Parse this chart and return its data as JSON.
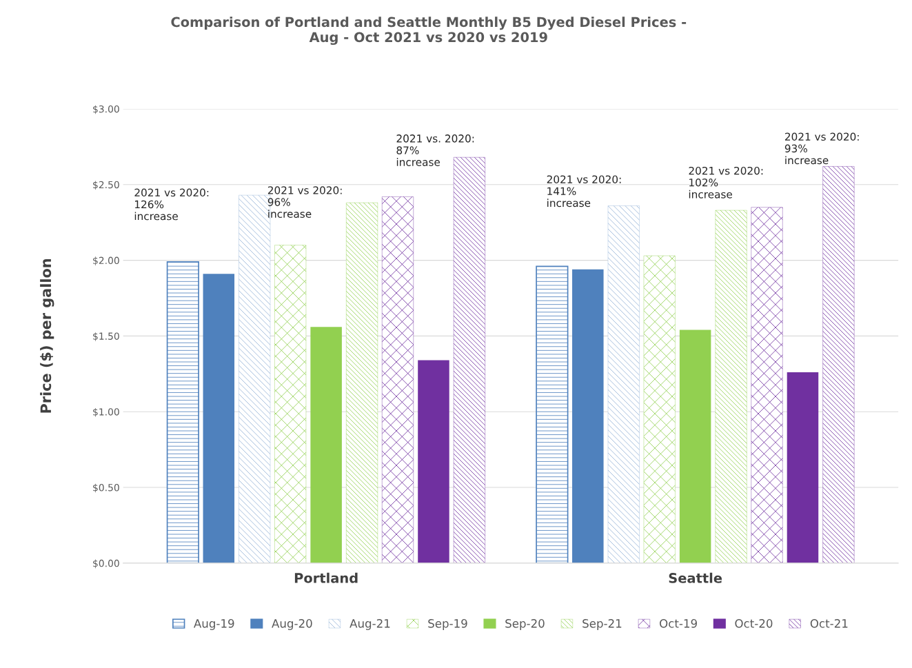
{
  "chart_data": {
    "type": "bar",
    "title": "Comparison of Portland and Seattle Monthly B5 Dyed Diesel Prices -\nAug - Oct 2021 vs 2020 vs 2019",
    "ylabel": "Price ($) per gallon",
    "categories": [
      "Portland",
      "Seattle"
    ],
    "series": [
      {
        "name": "Aug-19",
        "color": "#4f81bd",
        "values": [
          1.99,
          1.96
        ]
      },
      {
        "name": "Aug-20",
        "color": "#4f81bd",
        "values": [
          1.91,
          1.94
        ]
      },
      {
        "name": "Aug-21",
        "color": "#95b3d7",
        "values": [
          2.43,
          2.36
        ]
      },
      {
        "name": "Sep-19",
        "color": "#92d050",
        "values": [
          2.1,
          2.03
        ]
      },
      {
        "name": "Sep-20",
        "color": "#92d050",
        "values": [
          1.56,
          1.54
        ]
      },
      {
        "name": "Sep-21",
        "color": "#92d050",
        "values": [
          2.38,
          2.33
        ]
      },
      {
        "name": "Oct-19",
        "color": "#7030a0",
        "values": [
          2.42,
          2.35
        ]
      },
      {
        "name": "Oct-20",
        "color": "#7030a0",
        "values": [
          1.34,
          1.26
        ]
      },
      {
        "name": "Oct-21",
        "color": "#7030a0",
        "values": [
          2.68,
          2.62
        ]
      }
    ],
    "ylim": [
      0,
      3
    ],
    "yticks": [
      {
        "value": 0,
        "label": "$0.00"
      },
      {
        "value": 0.5,
        "label": "$0.50"
      },
      {
        "value": 1,
        "label": "$1.00"
      },
      {
        "value": 1.5,
        "label": "$1.50"
      },
      {
        "value": 2,
        "label": "$2.00"
      },
      {
        "value": 2.5,
        "label": "$2.50"
      },
      {
        "value": 3,
        "label": "$3.00"
      }
    ],
    "grid": "y",
    "legend": "bottom",
    "annotations": [
      "2021 vs 2020:\n126%\nincrease",
      "2021 vs 2020:\n96%\nincrease",
      "2021 vs. 2020:\n87%\nincrease",
      "2021 vs 2020:\n141%\nincrease",
      "2021 vs 2020:\n102%\nincrease",
      "2021 vs 2020:\n93%\nincrease"
    ]
  }
}
